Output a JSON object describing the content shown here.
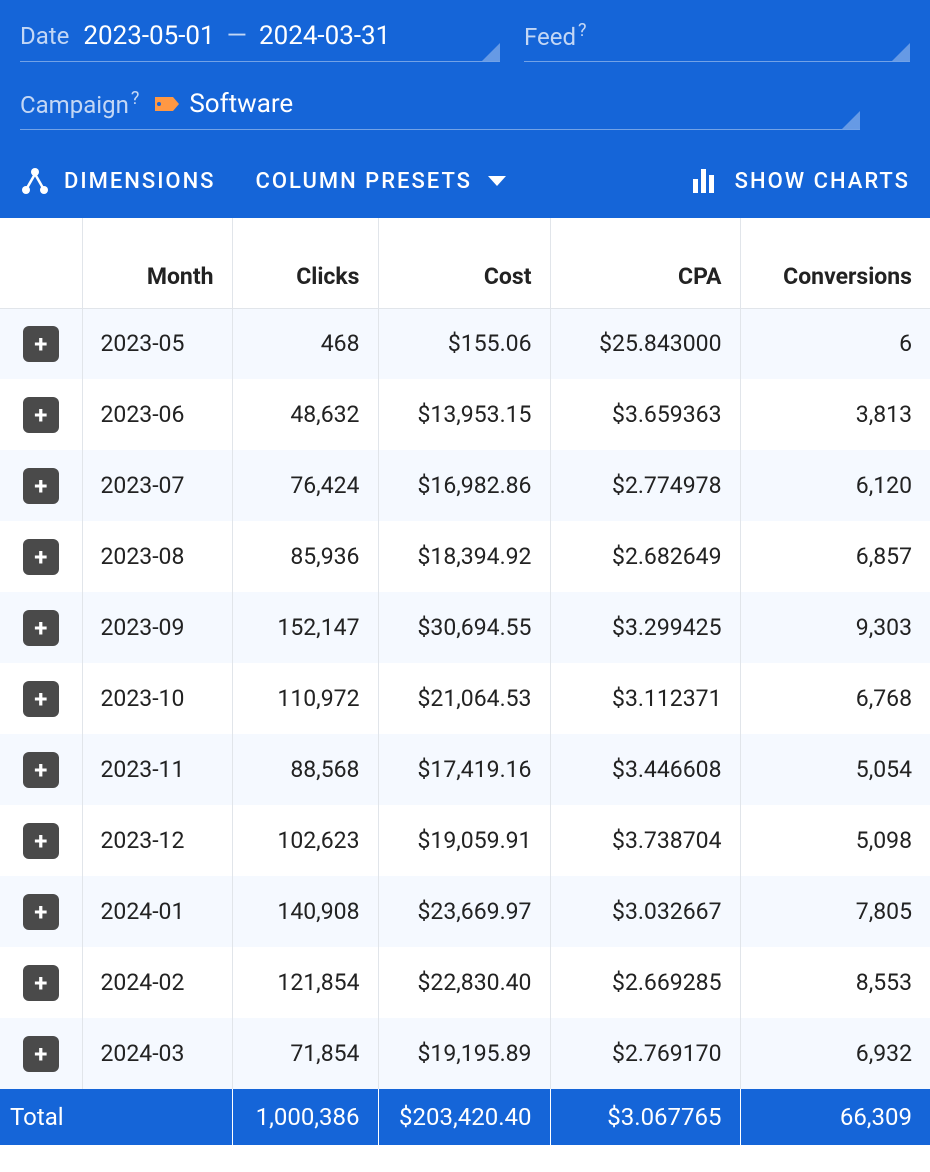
{
  "filters": {
    "date_label": "Date",
    "date_from": "2023-05-01",
    "date_to": "2024-03-31",
    "feed_label": "Feed",
    "campaign_label": "Campaign",
    "campaign_value": "Software"
  },
  "toolbar": {
    "dimensions": "DIMENSIONS",
    "column_presets": "COLUMN PRESETS",
    "show_charts": "SHOW CHARTS"
  },
  "table": {
    "columns": {
      "month": "Month",
      "clicks": "Clicks",
      "cost": "Cost",
      "cpa": "CPA",
      "conversions": "Conversions"
    },
    "rows": [
      {
        "month": "2023-05",
        "clicks": "468",
        "cost": "$155.06",
        "cpa": "$25.843000",
        "conversions": "6"
      },
      {
        "month": "2023-06",
        "clicks": "48,632",
        "cost": "$13,953.15",
        "cpa": "$3.659363",
        "conversions": "3,813"
      },
      {
        "month": "2023-07",
        "clicks": "76,424",
        "cost": "$16,982.86",
        "cpa": "$2.774978",
        "conversions": "6,120"
      },
      {
        "month": "2023-08",
        "clicks": "85,936",
        "cost": "$18,394.92",
        "cpa": "$2.682649",
        "conversions": "6,857"
      },
      {
        "month": "2023-09",
        "clicks": "152,147",
        "cost": "$30,694.55",
        "cpa": "$3.299425",
        "conversions": "9,303"
      },
      {
        "month": "2023-10",
        "clicks": "110,972",
        "cost": "$21,064.53",
        "cpa": "$3.112371",
        "conversions": "6,768"
      },
      {
        "month": "2023-11",
        "clicks": "88,568",
        "cost": "$17,419.16",
        "cpa": "$3.446608",
        "conversions": "5,054"
      },
      {
        "month": "2023-12",
        "clicks": "102,623",
        "cost": "$19,059.91",
        "cpa": "$3.738704",
        "conversions": "5,098"
      },
      {
        "month": "2024-01",
        "clicks": "140,908",
        "cost": "$23,669.97",
        "cpa": "$3.032667",
        "conversions": "7,805"
      },
      {
        "month": "2024-02",
        "clicks": "121,854",
        "cost": "$22,830.40",
        "cpa": "$2.669285",
        "conversions": "8,553"
      },
      {
        "month": "2024-03",
        "clicks": "71,854",
        "cost": "$19,195.89",
        "cpa": "$2.769170",
        "conversions": "6,932"
      }
    ],
    "total": {
      "label": "Total",
      "clicks": "1,000,386",
      "cost": "$203,420.40",
      "cpa": "$3.067765",
      "conversions": "66,309"
    }
  },
  "colors": {
    "header_bg": "#1565d8",
    "row_alt_bg": "#f5f9ff",
    "border": "#e1e5ea",
    "expand_btn_bg": "#4a4a4a",
    "tag_fill": "#ff9843"
  }
}
